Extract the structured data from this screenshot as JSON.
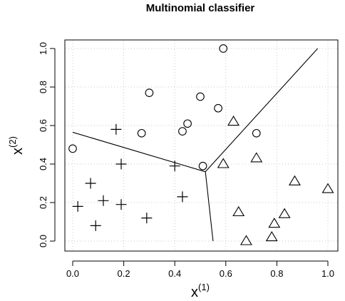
{
  "chart_data": {
    "type": "scatter",
    "title": "Multinomial classifier",
    "xlabel": {
      "base": "x",
      "sup": "(1)"
    },
    "ylabel": {
      "base": "x",
      "sup": "(2)"
    },
    "xlim": [
      0,
      1
    ],
    "ylim": [
      0,
      1
    ],
    "xticks": [
      "0.0",
      "0.2",
      "0.4",
      "0.6",
      "0.8",
      "1.0"
    ],
    "yticks": [
      "0.0",
      "0.2",
      "0.4",
      "0.6",
      "0.8",
      "1.0"
    ],
    "grid": true,
    "series": [
      {
        "marker": "circle",
        "points": [
          [
            0.0,
            0.48
          ],
          [
            0.27,
            0.56
          ],
          [
            0.3,
            0.77
          ],
          [
            0.43,
            0.57
          ],
          [
            0.45,
            0.61
          ],
          [
            0.5,
            0.75
          ],
          [
            0.51,
            0.39
          ],
          [
            0.57,
            0.69
          ],
          [
            0.59,
            1.0
          ],
          [
            0.72,
            0.56
          ]
        ]
      },
      {
        "marker": "plus",
        "points": [
          [
            0.02,
            0.18
          ],
          [
            0.07,
            0.3
          ],
          [
            0.09,
            0.08
          ],
          [
            0.12,
            0.21
          ],
          [
            0.17,
            0.58
          ],
          [
            0.19,
            0.4
          ],
          [
            0.19,
            0.19
          ],
          [
            0.29,
            0.12
          ],
          [
            0.4,
            0.39
          ],
          [
            0.43,
            0.23
          ]
        ]
      },
      {
        "marker": "triangle",
        "points": [
          [
            0.59,
            0.4
          ],
          [
            0.63,
            0.62
          ],
          [
            0.65,
            0.15
          ],
          [
            0.68,
            0.0
          ],
          [
            0.72,
            0.43
          ],
          [
            0.78,
            0.02
          ],
          [
            0.79,
            0.09
          ],
          [
            0.83,
            0.14
          ],
          [
            0.87,
            0.31
          ],
          [
            1.0,
            0.27
          ]
        ]
      }
    ],
    "boundaries": [
      [
        [
          0.0,
          0.565
        ],
        [
          0.52,
          0.36
        ]
      ],
      [
        [
          0.52,
          0.36
        ],
        [
          0.55,
          0.0
        ]
      ],
      [
        [
          0.52,
          0.36
        ],
        [
          0.96,
          1.0
        ]
      ]
    ]
  }
}
